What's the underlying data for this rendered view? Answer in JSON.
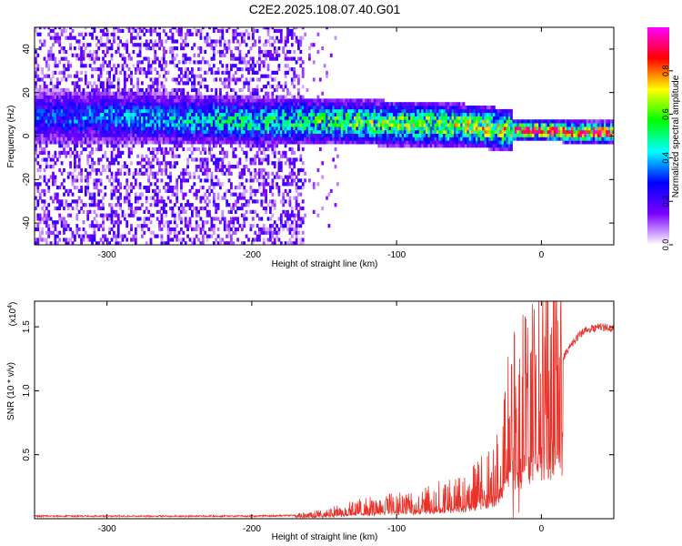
{
  "title": "C2E2.2025.108.07.40.G01",
  "chart_data": [
    {
      "type": "heatmap",
      "xlabel": "Height of straight line (km)",
      "ylabel": "Frequency (Hz)",
      "xlim": [
        -350,
        50
      ],
      "ylim": [
        -50,
        50
      ],
      "x_ticks": [
        -300,
        -200,
        -100,
        0
      ],
      "y_ticks": [
        -40,
        -20,
        0,
        20,
        40
      ],
      "colorbar": {
        "label": "Normalized spectral amplitude",
        "range": [
          0,
          1
        ],
        "ticks": [
          "0.0",
          "0.2",
          "0.4",
          "0.6",
          "0.8"
        ],
        "tick_values": [
          0,
          0.2,
          0.4,
          0.6,
          0.8
        ],
        "colors": [
          "#ffffff",
          "#7b00ff",
          "#0000ff",
          "#00ffff",
          "#00ff00",
          "#ffff00",
          "#ff0000",
          "#ff00ff"
        ]
      },
      "ridge": {
        "description_points_x": [
          -350,
          -300,
          -250,
          -200,
          -150,
          -100,
          -50,
          -25,
          0,
          25,
          50
        ],
        "center_freq_hz": [
          8,
          8,
          7,
          6,
          6,
          5,
          4,
          2,
          2,
          1,
          1
        ]
      },
      "noise_region_xlim": [
        -350,
        -165
      ]
    },
    {
      "type": "line",
      "xlabel": "Height of straight line (km)",
      "ylabel": "SNR (10 * v/v)",
      "y_multiplier": "(x10",
      "y_multiplier_exp": "4",
      "y_multiplier_close": ")",
      "xlim": [
        -350,
        50
      ],
      "ylim": [
        0,
        1.7
      ],
      "x_ticks": [
        -300,
        -200,
        -100,
        0
      ],
      "y_ticks": [
        0.5,
        1.0,
        1.5
      ],
      "y_tick_labels": [
        "0.5",
        "1.0",
        "1.5"
      ],
      "color": "#e8332a",
      "x": [
        -350,
        -300,
        -250,
        -200,
        -175,
        -160,
        -150,
        -140,
        -130,
        -120,
        -110,
        -100,
        -90,
        -80,
        -70,
        -60,
        -50,
        -45,
        -40,
        -35,
        -30,
        -25,
        -22,
        -20,
        -18,
        -15,
        -10,
        -5,
        0,
        5,
        10,
        15,
        20,
        25,
        30,
        40,
        50
      ],
      "y": [
        0.02,
        0.02,
        0.02,
        0.02,
        0.025,
        0.03,
        0.04,
        0.06,
        0.08,
        0.09,
        0.1,
        0.11,
        0.12,
        0.14,
        0.16,
        0.18,
        0.2,
        0.24,
        0.3,
        0.32,
        0.4,
        0.55,
        0.8,
        1.05,
        0.9,
        0.85,
        0.95,
        1.05,
        1.08,
        1.15,
        1.3,
        1.25,
        1.35,
        1.42,
        1.47,
        1.5,
        1.49
      ]
    }
  ]
}
